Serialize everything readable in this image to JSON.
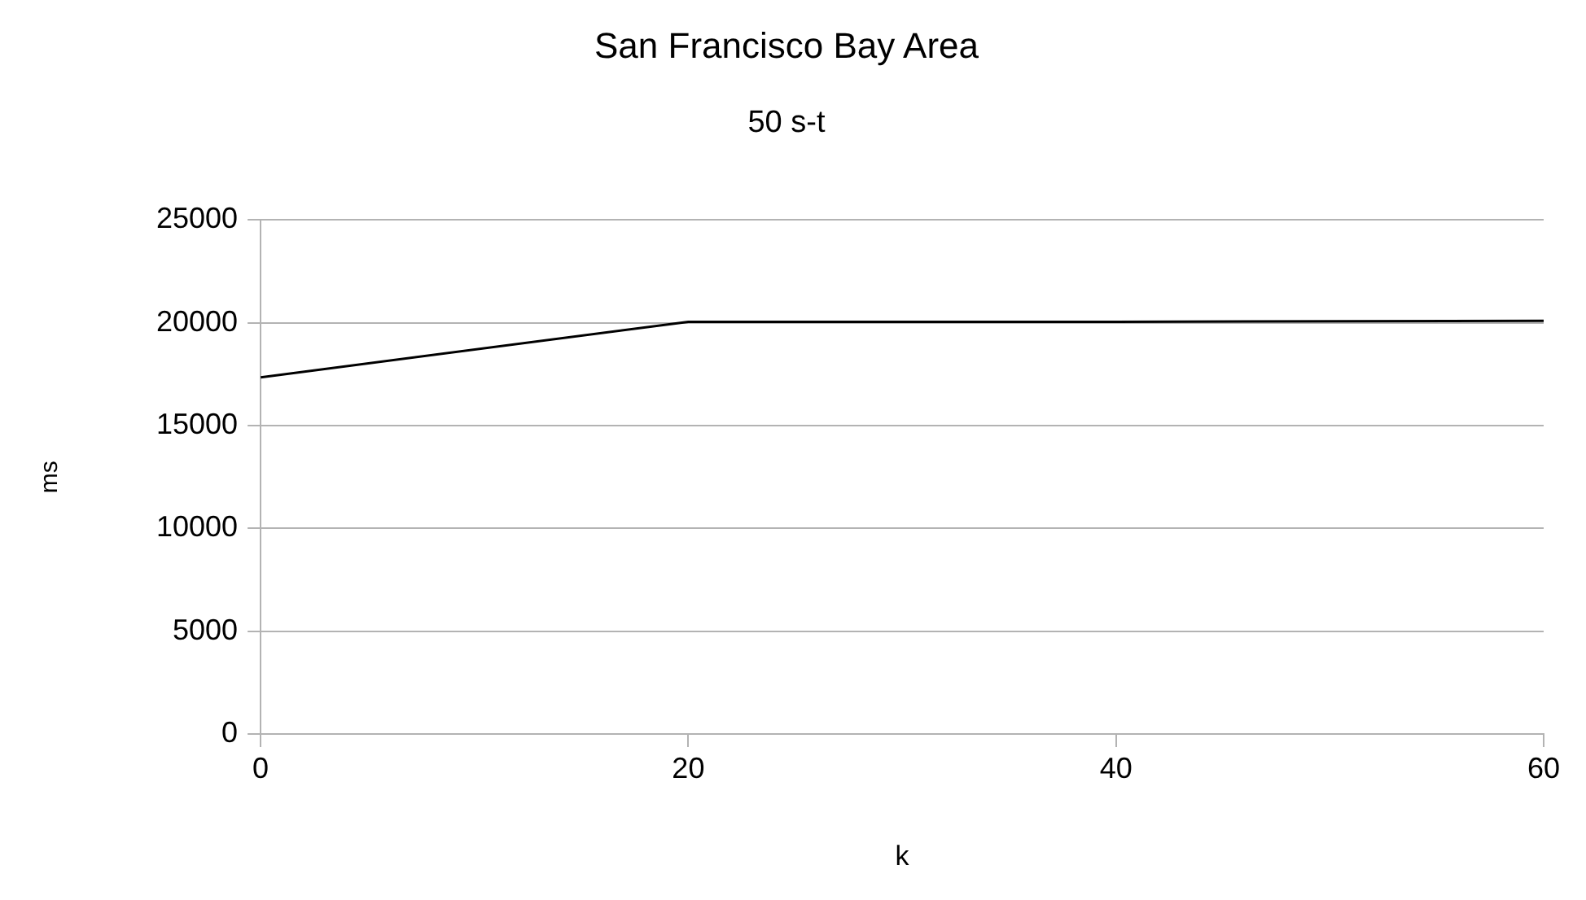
{
  "chart_data": {
    "type": "line",
    "title": "San Francisco Bay Area",
    "subtitle": "50 s-t",
    "xlabel": "k",
    "ylabel": "ms",
    "x": [
      0,
      20,
      40,
      60
    ],
    "series": [
      {
        "color": "#000000",
        "values": [
          17350,
          20050,
          20050,
          20100
        ]
      }
    ],
    "xlim": [
      0,
      60
    ],
    "xticks": [
      0,
      20,
      40,
      60
    ],
    "ylim": [
      0,
      25000
    ],
    "yticks": [
      0,
      5000,
      10000,
      15000,
      20000,
      25000
    ],
    "grid": "y",
    "legend": false,
    "marker": "none",
    "line_style": "solid"
  }
}
